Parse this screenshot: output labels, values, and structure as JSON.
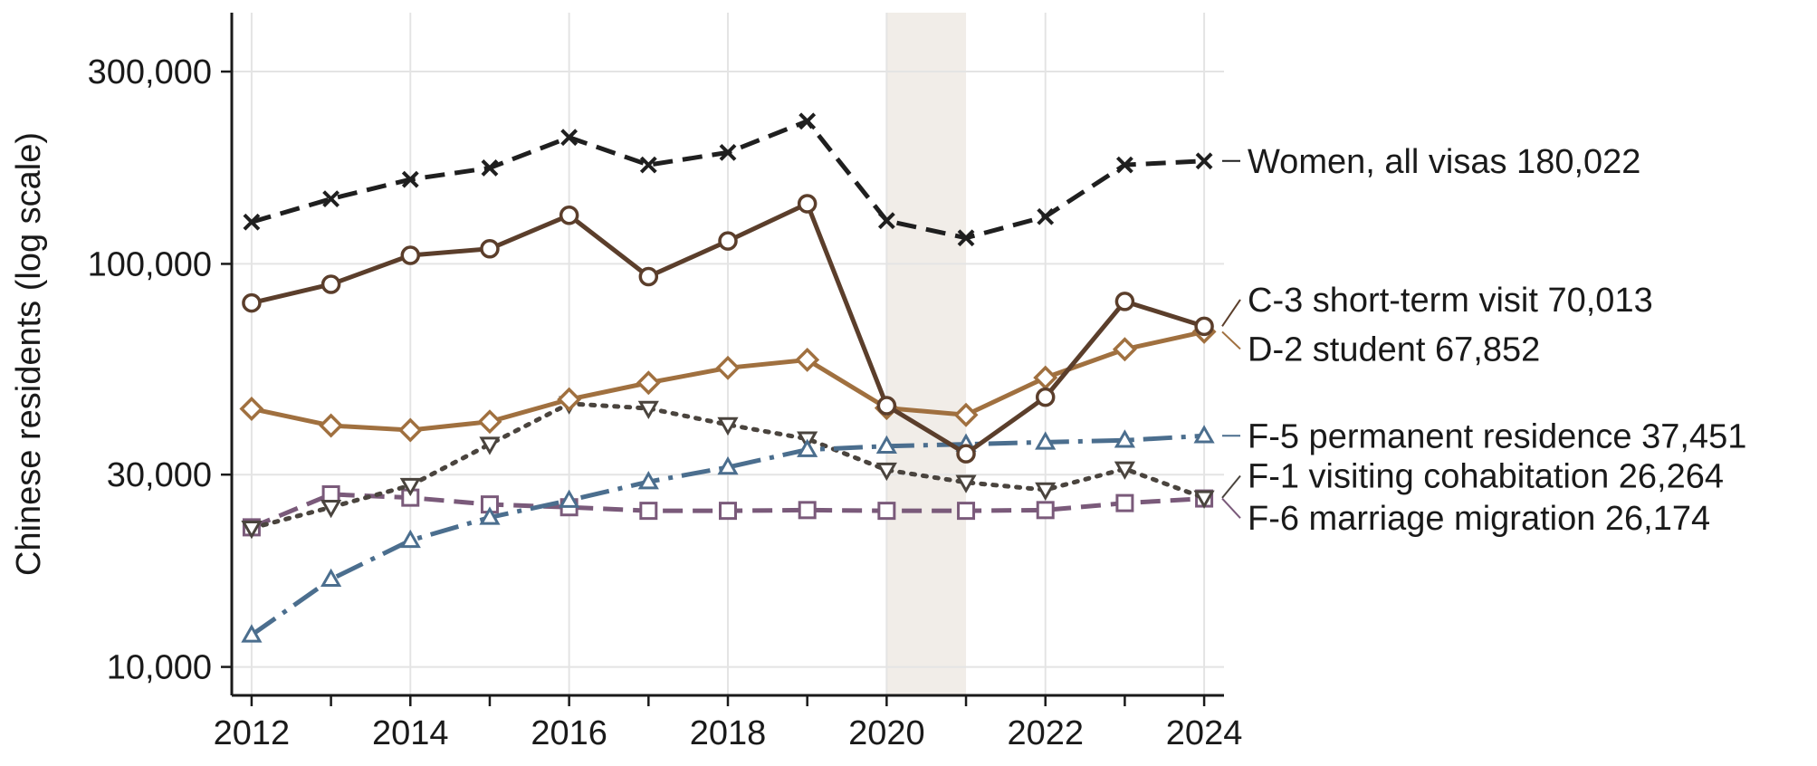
{
  "chart_data": {
    "type": "line",
    "title": "",
    "xlabel": "",
    "ylabel": "Chinese residents (log scale)",
    "y_scale": "log",
    "ylim": [
      8500,
      420000
    ],
    "xlim": [
      2011.75,
      2024.25
    ],
    "x_ticks": [
      2012,
      2014,
      2016,
      2018,
      2020,
      2022,
      2024
    ],
    "y_ticks": [
      10000,
      30000,
      100000,
      300000
    ],
    "y_tick_labels": [
      "10,000",
      "30,000",
      "100,000",
      "300,000"
    ],
    "grid": true,
    "shaded_period": [
      2020,
      2021
    ],
    "shaded_color": "#f1ede8",
    "legend": "direct labels at right end of lines",
    "x": [
      2012,
      2013,
      2014,
      2015,
      2016,
      2017,
      2018,
      2019,
      2020,
      2021,
      2022,
      2023,
      2024
    ],
    "series": [
      {
        "name": "Women, all visas",
        "end_label": "180,022",
        "color": "#1f1f1f",
        "marker": "x",
        "dash": "22 11",
        "label_y": 180022,
        "values": [
          127000,
          145000,
          162000,
          173000,
          206000,
          176000,
          189000,
          226000,
          128000,
          116000,
          131000,
          176000,
          180022
        ]
      },
      {
        "name": "C-3 short-term visit",
        "end_label": "70,013",
        "color": "#5b3e2b",
        "marker": "circle",
        "dash": "",
        "label_y": 81500,
        "values": [
          80000,
          89000,
          105000,
          109000,
          132000,
          93000,
          114000,
          141000,
          44500,
          33800,
          46700,
          80700,
          70013
        ]
      },
      {
        "name": "D-2 student",
        "end_label": "67,852",
        "color": "#a0703f",
        "marker": "diamond",
        "dash": "",
        "label_y": 61500,
        "values": [
          43700,
          39700,
          38700,
          40600,
          46100,
          50700,
          55200,
          57800,
          43900,
          42200,
          52200,
          61400,
          67852
        ]
      },
      {
        "name": "F-5 permanent residence",
        "end_label": "37,451",
        "color": "#4b6e8e",
        "marker": "triangle-up",
        "dash": "32 10 5 10",
        "label_y": 37451,
        "values": [
          12000,
          16500,
          20600,
          23500,
          25900,
          28800,
          31300,
          34600,
          35300,
          35700,
          36100,
          36500,
          37451
        ]
      },
      {
        "name": "F-1 visiting cohabitation",
        "end_label": "26,264",
        "color": "#4a443e",
        "marker": "triangle-down",
        "dash": "4 9",
        "label_y": 29800,
        "values": [
          22100,
          24900,
          28200,
          35700,
          45000,
          43800,
          39900,
          36800,
          30800,
          28700,
          27500,
          31000,
          26264
        ]
      },
      {
        "name": "F-6 marriage migration",
        "end_label": "26,174",
        "color": "#7a5a7a",
        "marker": "square",
        "dash": "22 11",
        "label_y": 23400,
        "values": [
          22200,
          26800,
          26300,
          25300,
          24900,
          24400,
          24400,
          24500,
          24400,
          24400,
          24500,
          25500,
          26174
        ]
      }
    ]
  }
}
